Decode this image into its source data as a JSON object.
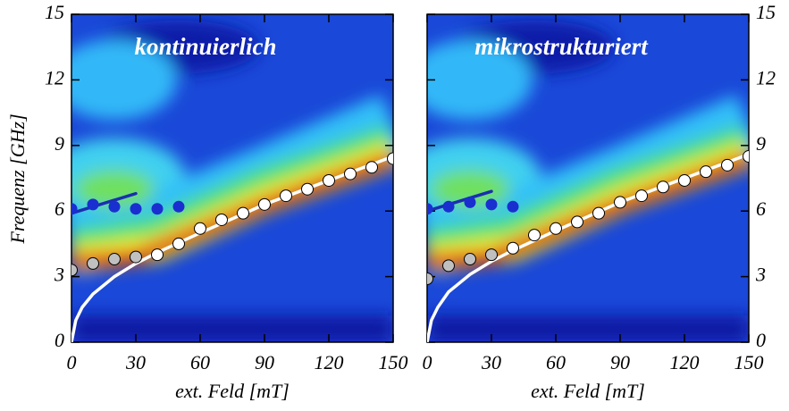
{
  "chart_data": [
    {
      "type": "scatter",
      "title": "kontinuierlich",
      "xlabel": "ext. Feld [mT]",
      "ylabel": "Frequenz [GHz]",
      "xlim": [
        0,
        150
      ],
      "ylim": [
        0,
        15
      ],
      "xticks": [
        0,
        30,
        60,
        90,
        120,
        150
      ],
      "yticks": [
        0,
        3,
        6,
        9,
        12,
        15
      ],
      "ytick_side": "left",
      "series": [
        {
          "type": "line",
          "color": "#ffffff",
          "x": [
            0,
            2,
            5,
            10,
            20,
            30,
            40,
            60,
            90,
            120,
            150
          ],
          "values": [
            0,
            1.0,
            1.6,
            2.2,
            3.0,
            3.6,
            4.1,
            5.0,
            6.3,
            7.4,
            8.5
          ]
        },
        {
          "type": "line",
          "color": "#1a2fb0",
          "x": [
            0,
            30
          ],
          "values": [
            5.9,
            6.8
          ]
        },
        {
          "type": "scatter",
          "color": "#c0c0c0",
          "edgecolor": "#000000",
          "x": [
            0,
            10,
            20,
            30
          ],
          "values": [
            3.3,
            3.6,
            3.8,
            3.9
          ]
        },
        {
          "type": "scatter",
          "color": "#ffffff",
          "edgecolor": "#000000",
          "x": [
            40,
            50,
            60,
            70,
            80,
            90,
            100,
            110,
            120,
            130,
            140,
            150
          ],
          "values": [
            4.0,
            4.5,
            5.2,
            5.6,
            5.9,
            6.3,
            6.7,
            7.0,
            7.4,
            7.7,
            8.0,
            8.4
          ]
        },
        {
          "type": "scatter",
          "color": "#1a2fd0",
          "x": [
            0,
            10,
            20,
            30,
            40,
            50
          ],
          "values": [
            6.1,
            6.3,
            6.2,
            6.1,
            6.1,
            6.2
          ]
        }
      ]
    },
    {
      "type": "scatter",
      "title": "mikrostrukturiert",
      "xlabel": "ext. Feld [mT]",
      "xlim": [
        0,
        150
      ],
      "ylim": [
        0,
        15
      ],
      "xticks": [
        0,
        30,
        60,
        90,
        120,
        150
      ],
      "yticks": [
        0,
        3,
        6,
        9,
        12,
        15
      ],
      "ytick_side": "right",
      "series": [
        {
          "type": "line",
          "color": "#ffffff",
          "x": [
            0,
            2,
            5,
            10,
            20,
            30,
            40,
            60,
            90,
            120,
            150
          ],
          "values": [
            0,
            1.0,
            1.6,
            2.3,
            3.1,
            3.7,
            4.2,
            5.1,
            6.4,
            7.5,
            8.6
          ]
        },
        {
          "type": "line",
          "color": "#1a2fb0",
          "x": [
            0,
            30
          ],
          "values": [
            6.0,
            6.9
          ]
        },
        {
          "type": "scatter",
          "color": "#c0c0c0",
          "edgecolor": "#000000",
          "x": [
            0,
            10,
            20,
            30
          ],
          "values": [
            2.9,
            3.5,
            3.8,
            4.0
          ]
        },
        {
          "type": "scatter",
          "color": "#ffffff",
          "edgecolor": "#000000",
          "x": [
            40,
            50,
            60,
            70,
            80,
            90,
            100,
            110,
            120,
            130,
            140,
            150
          ],
          "values": [
            4.3,
            4.9,
            5.2,
            5.5,
            5.9,
            6.4,
            6.7,
            7.1,
            7.4,
            7.8,
            8.1,
            8.5
          ]
        },
        {
          "type": "scatter",
          "color": "#1a2fd0",
          "x": [
            0,
            10,
            20,
            30,
            40
          ],
          "values": [
            6.1,
            6.2,
            6.4,
            6.3,
            6.2
          ]
        }
      ]
    }
  ]
}
